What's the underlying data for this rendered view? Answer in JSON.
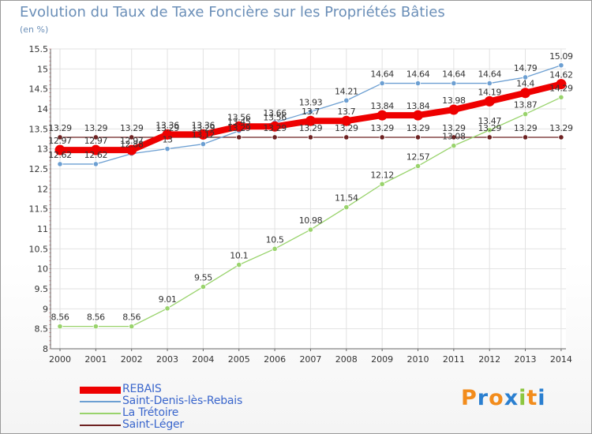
{
  "header": {
    "title": "Evolution du Taux de Taxe Foncière sur les Propriétés Bâties",
    "unit": "(en %)"
  },
  "logo": {
    "text": "Proxiti",
    "letters": [
      "P",
      "r",
      "o",
      "x",
      "i",
      "t",
      "i"
    ],
    "colors": [
      "#f28c1c",
      "#2a7fd0",
      "#f28c1c",
      "#2a7fd0",
      "#8cc63f",
      "#f28c1c",
      "#2a7fd0"
    ]
  },
  "chart_data": {
    "type": "line",
    "title": "Evolution du Taux de Taxe Foncière sur les Propriétés Bâties",
    "ylabel": "(en %)",
    "xlabel": "",
    "ylim": [
      8,
      15.5
    ],
    "yticks": [
      8,
      8.5,
      9,
      9.5,
      10,
      10.5,
      11,
      11.5,
      12,
      12.5,
      13,
      13.5,
      14,
      14.5,
      15,
      15.5
    ],
    "ytick_labels": [
      "8",
      "8.5",
      "9",
      "9.5",
      "10",
      "10.5",
      "11",
      "11.5",
      "12",
      "12.5",
      "13",
      "13.5",
      "14",
      "14.5",
      "15",
      "15.5"
    ],
    "categories": [
      "2000",
      "2001",
      "2002",
      "2003",
      "2004",
      "2005",
      "2006",
      "2007",
      "2008",
      "2009",
      "2010",
      "2011",
      "2012",
      "2013",
      "2014"
    ],
    "grid": true,
    "legend_position": "bottom-left",
    "series": [
      {
        "name": "Saint-Léger",
        "color": "#6e2222",
        "line_width": 1.3,
        "values": [
          13.29,
          13.29,
          13.29,
          13.29,
          13.29,
          13.29,
          13.29,
          13.29,
          13.29,
          13.29,
          13.29,
          13.29,
          13.29,
          13.29,
          13.29
        ],
        "labels": [
          "13.29",
          "13.29",
          "13.29",
          "13.29",
          "13.29",
          "13.29",
          "13.29",
          "13.29",
          "13.29",
          "13.29",
          "13.29",
          "13.29",
          "13.29",
          "13.29",
          "13.29"
        ]
      },
      {
        "name": "La Trétoire",
        "color": "#99d36c",
        "line_width": 1.3,
        "values": [
          8.56,
          8.56,
          8.56,
          9.01,
          9.55,
          10.1,
          10.5,
          10.98,
          11.54,
          12.12,
          12.57,
          13.08,
          13.47,
          13.87,
          14.29
        ],
        "labels": [
          "8.56",
          "8.56",
          "8.56",
          "9.01",
          "9.55",
          "10.1",
          "10.5",
          "10.98",
          "11.54",
          "12.12",
          "12.57",
          "13.08",
          "13.47",
          "13.87",
          "14.29"
        ]
      },
      {
        "name": "Saint-Denis-lès-Rebais",
        "color": "#6c9fd2",
        "line_width": 1.3,
        "values": [
          12.62,
          12.62,
          12.88,
          13.0,
          13.12,
          13.45,
          13.66,
          13.93,
          14.21,
          14.64,
          14.64,
          14.64,
          14.64,
          14.79,
          15.09
        ],
        "labels": [
          "12.62",
          "12.62",
          "12.88",
          "13",
          "13.12",
          "13.45",
          "13.66",
          "13.93",
          "14.21",
          "14.64",
          "14.64",
          "14.64",
          "14.64",
          "14.79",
          "15.09"
        ]
      },
      {
        "name": "REBAIS",
        "color": "#ee0000",
        "line_width": 8,
        "values": [
          12.97,
          12.97,
          12.97,
          13.36,
          13.36,
          13.56,
          13.56,
          13.7,
          13.7,
          13.84,
          13.84,
          13.98,
          14.19,
          14.4,
          14.62
        ],
        "labels": [
          "12.97",
          "12.97",
          "12.97",
          "13.36",
          "13.36",
          "13.56",
          "13.56",
          "13.7",
          "13.7",
          "13.84",
          "13.84",
          "13.98",
          "14.19",
          "14.4",
          "14.62"
        ]
      }
    ]
  },
  "legend": {
    "items": [
      {
        "label": "REBAIS",
        "color": "#ee0000",
        "thickness": 9
      },
      {
        "label": "Saint-Denis-lès-Rebais",
        "color": "#6c9fd2",
        "thickness": 2
      },
      {
        "label": "La Trétoire",
        "color": "#99d36c",
        "thickness": 2
      },
      {
        "label": "Saint-Léger",
        "color": "#6e2222",
        "thickness": 2
      }
    ]
  }
}
